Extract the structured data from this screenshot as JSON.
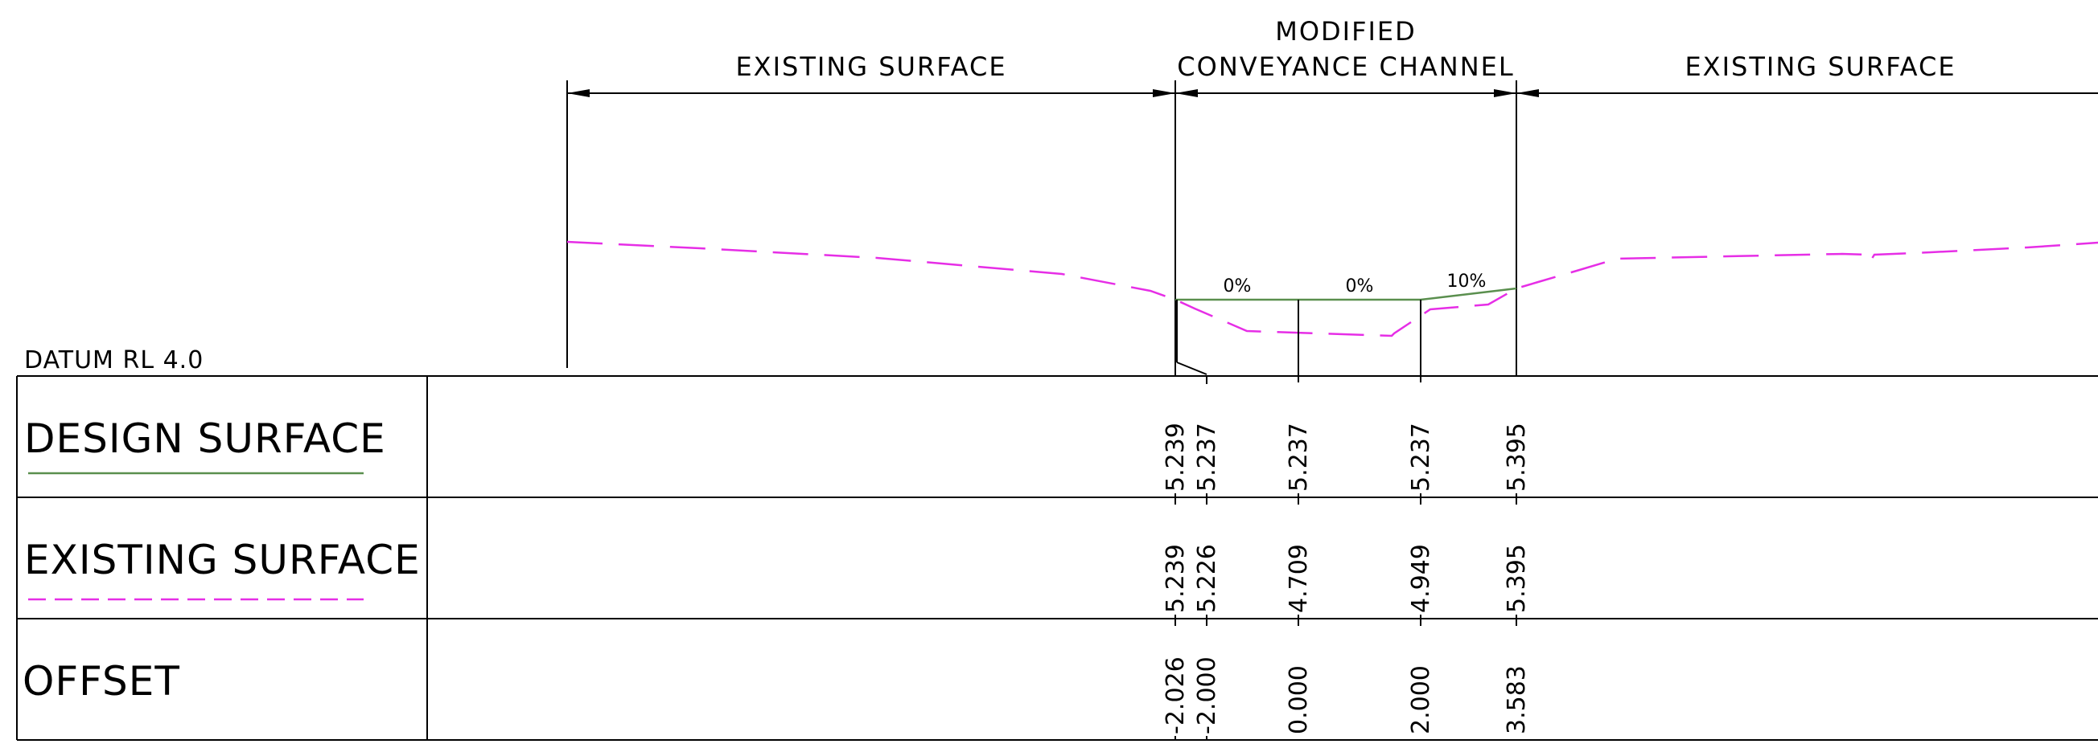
{
  "headers": {
    "left": "EXISTING SURFACE",
    "center_line1": "MODIFIED",
    "center_line2": "CONVEYANCE CHANNEL",
    "right": "EXISTING SURFACE"
  },
  "datum": "DATUM RL 4.0",
  "grades": [
    "0%",
    "0%",
    "10%"
  ],
  "rows": {
    "design": {
      "label": "DESIGN SURFACE",
      "values": [
        "5.239",
        "5.237",
        "5.237",
        "5.237",
        "5.395"
      ]
    },
    "existing": {
      "label": "EXISTING SURFACE",
      "values": [
        "5.239",
        "5.226",
        "4.709",
        "4.949",
        "5.395"
      ]
    },
    "offset": {
      "label": "OFFSET",
      "values": [
        "-2.026",
        "-2.000",
        "0.000",
        "2.000",
        "3.583"
      ]
    }
  },
  "colors": {
    "design_line": "#5a8f4e",
    "existing_line": "#e62ee6",
    "ink": "#000000"
  }
}
